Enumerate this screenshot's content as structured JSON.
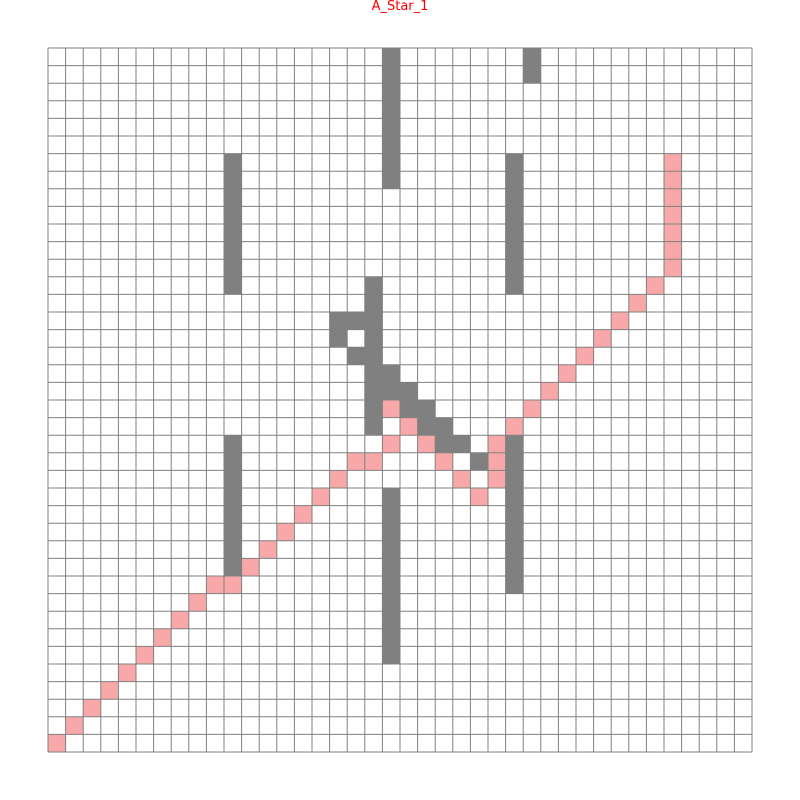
{
  "title": "A_Star_1",
  "colors": {
    "title": "#ff0000",
    "empty": "#ffffff",
    "wall": "#808080",
    "path": "#f8a8a8",
    "grid_line": "#808080"
  },
  "grid": {
    "cols": 40,
    "rows": 40,
    "walls": [
      [
        19,
        0
      ],
      [
        19,
        1
      ],
      [
        19,
        2
      ],
      [
        19,
        3
      ],
      [
        19,
        4
      ],
      [
        19,
        5
      ],
      [
        19,
        6
      ],
      [
        19,
        7
      ],
      [
        27,
        0
      ],
      [
        27,
        1
      ],
      [
        10,
        6
      ],
      [
        10,
        7
      ],
      [
        10,
        8
      ],
      [
        10,
        9
      ],
      [
        10,
        10
      ],
      [
        10,
        11
      ],
      [
        10,
        12
      ],
      [
        10,
        13
      ],
      [
        26,
        6
      ],
      [
        26,
        7
      ],
      [
        26,
        8
      ],
      [
        26,
        9
      ],
      [
        26,
        10
      ],
      [
        26,
        11
      ],
      [
        26,
        12
      ],
      [
        26,
        13
      ],
      [
        18,
        13
      ],
      [
        18,
        14
      ],
      [
        18,
        15
      ],
      [
        18,
        16
      ],
      [
        16,
        15
      ],
      [
        17,
        15
      ],
      [
        16,
        16
      ],
      [
        17,
        17
      ],
      [
        18,
        17
      ],
      [
        18,
        18
      ],
      [
        19,
        18
      ],
      [
        18,
        19
      ],
      [
        19,
        19
      ],
      [
        20,
        19
      ],
      [
        18,
        20
      ],
      [
        20,
        20
      ],
      [
        21,
        20
      ],
      [
        18,
        21
      ],
      [
        21,
        21
      ],
      [
        22,
        21
      ],
      [
        22,
        22
      ],
      [
        23,
        22
      ],
      [
        24,
        23
      ],
      [
        26,
        22
      ],
      [
        26,
        23
      ],
      [
        26,
        24
      ],
      [
        26,
        25
      ],
      [
        26,
        26
      ],
      [
        26,
        27
      ],
      [
        26,
        28
      ],
      [
        26,
        29
      ],
      [
        26,
        30
      ],
      [
        10,
        22
      ],
      [
        10,
        23
      ],
      [
        10,
        24
      ],
      [
        10,
        25
      ],
      [
        10,
        26
      ],
      [
        10,
        27
      ],
      [
        10,
        28
      ],
      [
        10,
        29
      ],
      [
        19,
        25
      ],
      [
        19,
        26
      ],
      [
        19,
        27
      ],
      [
        19,
        28
      ],
      [
        19,
        29
      ],
      [
        19,
        30
      ],
      [
        19,
        31
      ],
      [
        19,
        32
      ],
      [
        19,
        33
      ],
      [
        19,
        34
      ]
    ],
    "path": [
      [
        35,
        6
      ],
      [
        35,
        7
      ],
      [
        35,
        8
      ],
      [
        35,
        9
      ],
      [
        35,
        10
      ],
      [
        35,
        11
      ],
      [
        35,
        12
      ],
      [
        34,
        13
      ],
      [
        33,
        14
      ],
      [
        32,
        15
      ],
      [
        31,
        16
      ],
      [
        30,
        17
      ],
      [
        29,
        18
      ],
      [
        28,
        19
      ],
      [
        27,
        20
      ],
      [
        26,
        21
      ],
      [
        25,
        22
      ],
      [
        25,
        23
      ],
      [
        25,
        24
      ],
      [
        24,
        25
      ],
      [
        23,
        24
      ],
      [
        22,
        23
      ],
      [
        21,
        22
      ],
      [
        20,
        21
      ],
      [
        19,
        20
      ],
      [
        19,
        22
      ],
      [
        18,
        23
      ],
      [
        17,
        23
      ],
      [
        16,
        24
      ],
      [
        15,
        25
      ],
      [
        14,
        26
      ],
      [
        13,
        27
      ],
      [
        12,
        28
      ],
      [
        11,
        29
      ],
      [
        10,
        30
      ],
      [
        9,
        30
      ],
      [
        8,
        31
      ],
      [
        7,
        32
      ],
      [
        6,
        33
      ],
      [
        5,
        34
      ],
      [
        4,
        35
      ],
      [
        3,
        36
      ],
      [
        2,
        37
      ],
      [
        1,
        38
      ],
      [
        0,
        39
      ]
    ]
  }
}
